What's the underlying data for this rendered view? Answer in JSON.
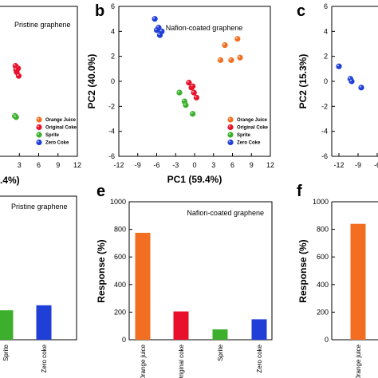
{
  "panel_letters": {
    "b": "b",
    "c": "c",
    "e": "e",
    "f": "f"
  },
  "colors": {
    "orange": "#f26f22",
    "red": "#e8102a",
    "green": "#3cb02c",
    "blue": "#1f3fd6"
  },
  "chart_data": [
    {
      "id": "a_partial",
      "type": "scatter",
      "subtitle": "Pristine graphene",
      "xlabel_fragment": ".4%)",
      "x_ticks": [
        "3",
        "6",
        "9",
        "12"
      ],
      "legend": [
        "Orange Juice",
        "Original Coke",
        "Sprite",
        "Zero Coke"
      ],
      "series": [
        {
          "name": "Original Coke",
          "x": [
            2.4,
            2.8,
            2.6,
            2.9,
            2.5
          ],
          "y": [
            1.3,
            1.1,
            0.8,
            0.5,
            1.0
          ]
        },
        {
          "name": "Sprite",
          "x": [
            2.3,
            2.5
          ],
          "y": [
            -2.7,
            -2.8
          ]
        }
      ]
    },
    {
      "id": "b",
      "type": "scatter",
      "subtitle": "Nafion-coated graphene",
      "xlabel": "PC1 (59.4%)",
      "ylabel": "PC2 (40.0%)",
      "xlim": [
        -12,
        12
      ],
      "ylim": [
        -6,
        6
      ],
      "x_ticks": [
        "-12",
        "-9",
        "-6",
        "-3",
        "0",
        "3",
        "6",
        "9",
        "12"
      ],
      "y_ticks": [
        "-6",
        "-4",
        "-2",
        "0",
        "2",
        "4",
        "6"
      ],
      "legend": [
        "Orange Juice",
        "Original Coke",
        "Sprite",
        "Zero Coke"
      ],
      "series": [
        {
          "name": "Orange Juice",
          "x": [
            4.1,
            4.8,
            5.8,
            7.2,
            6.8
          ],
          "y": [
            1.7,
            2.9,
            1.7,
            1.9,
            3.4
          ]
        },
        {
          "name": "Original Coke",
          "x": [
            -0.9,
            -0.5,
            -0.1,
            0.3,
            -0.3
          ],
          "y": [
            -0.1,
            -0.5,
            -0.9,
            -1.3,
            -0.4
          ]
        },
        {
          "name": "Sprite",
          "x": [
            -2.4,
            -1.6,
            -1.4,
            -0.3
          ],
          "y": [
            -0.9,
            -1.6,
            -1.9,
            -2.6
          ]
        },
        {
          "name": "Zero Coke",
          "x": [
            -6.3,
            -5.7,
            -5.2,
            -5.5,
            -6.0
          ],
          "y": [
            5.0,
            4.3,
            4.0,
            3.7,
            4.1
          ]
        }
      ]
    },
    {
      "id": "c_partial",
      "type": "scatter",
      "ylabel": "PC2 (15.3%)",
      "x_ticks": [
        "-12",
        "-9",
        "-6"
      ],
      "y_ticks": [
        "-6",
        "-4",
        "-2",
        "0",
        "2",
        "4",
        "6"
      ],
      "series": [
        {
          "name": "Zero Coke",
          "x": [
            -11.0,
            -9.2,
            -9.0,
            -7.5
          ],
          "y": [
            1.2,
            0.2,
            0.0,
            -0.5
          ]
        }
      ]
    },
    {
      "id": "d_partial",
      "type": "bar",
      "subtitle": "Pristine graphene",
      "categories": [
        "Sprite",
        "Zero coke"
      ],
      "values": [
        205,
        240
      ],
      "ylim": [
        0,
        1000
      ]
    },
    {
      "id": "e",
      "type": "bar",
      "subtitle": "Nafion-coated graphene",
      "ylabel": "Response (%)",
      "ylim": [
        0,
        1000
      ],
      "y_ticks": [
        "0",
        "200",
        "400",
        "600",
        "800",
        "1000"
      ],
      "categories": [
        "Orange juice",
        "Original coke",
        "Sprite",
        "Zero coke"
      ],
      "values": [
        775,
        205,
        75,
        148
      ]
    },
    {
      "id": "f_partial",
      "type": "bar",
      "ylabel": "Response (%)",
      "ylim": [
        0,
        1000
      ],
      "y_ticks": [
        "0",
        "200",
        "400",
        "600",
        "800",
        "1000"
      ],
      "categories": [
        "Orange juice"
      ],
      "values": [
        840
      ]
    }
  ]
}
